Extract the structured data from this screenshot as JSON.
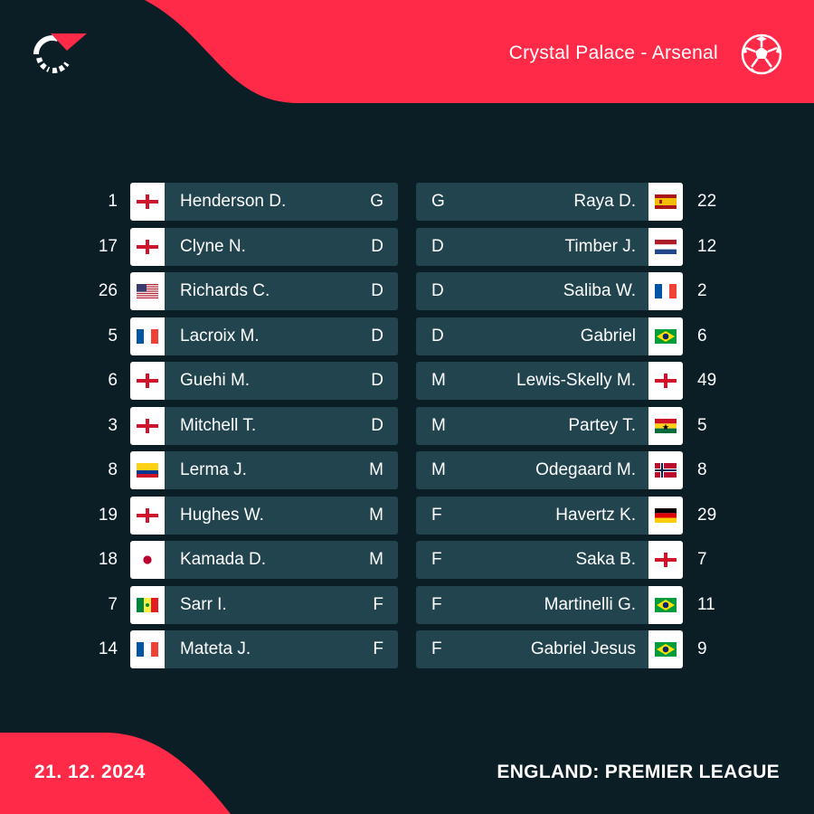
{
  "header": {
    "match_title": "Crystal Palace - Arsenal",
    "accent_color": "#ff2a48",
    "logo_icon": "flashscore-logo",
    "sport_icon": "soccer-ball-icon"
  },
  "home": {
    "team": "Crystal Palace",
    "players": [
      {
        "number": "1",
        "name": "Henderson D.",
        "position": "G",
        "flag": "england"
      },
      {
        "number": "17",
        "name": "Clyne N.",
        "position": "D",
        "flag": "england"
      },
      {
        "number": "26",
        "name": "Richards C.",
        "position": "D",
        "flag": "usa"
      },
      {
        "number": "5",
        "name": "Lacroix M.",
        "position": "D",
        "flag": "france"
      },
      {
        "number": "6",
        "name": "Guehi M.",
        "position": "D",
        "flag": "england"
      },
      {
        "number": "3",
        "name": "Mitchell T.",
        "position": "D",
        "flag": "england"
      },
      {
        "number": "8",
        "name": "Lerma J.",
        "position": "M",
        "flag": "colombia"
      },
      {
        "number": "19",
        "name": "Hughes W.",
        "position": "M",
        "flag": "england"
      },
      {
        "number": "18",
        "name": "Kamada D.",
        "position": "M",
        "flag": "japan"
      },
      {
        "number": "7",
        "name": "Sarr I.",
        "position": "F",
        "flag": "senegal"
      },
      {
        "number": "14",
        "name": "Mateta J.",
        "position": "F",
        "flag": "france"
      }
    ]
  },
  "away": {
    "team": "Arsenal",
    "players": [
      {
        "number": "22",
        "name": "Raya D.",
        "position": "G",
        "flag": "spain"
      },
      {
        "number": "12",
        "name": "Timber J.",
        "position": "D",
        "flag": "netherlands"
      },
      {
        "number": "2",
        "name": "Saliba W.",
        "position": "D",
        "flag": "france"
      },
      {
        "number": "6",
        "name": "Gabriel",
        "position": "D",
        "flag": "brazil"
      },
      {
        "number": "49",
        "name": "Lewis-Skelly M.",
        "position": "M",
        "flag": "england"
      },
      {
        "number": "5",
        "name": "Partey T.",
        "position": "M",
        "flag": "ghana"
      },
      {
        "number": "8",
        "name": "Odegaard M.",
        "position": "M",
        "flag": "norway"
      },
      {
        "number": "29",
        "name": "Havertz K.",
        "position": "F",
        "flag": "germany"
      },
      {
        "number": "7",
        "name": "Saka B.",
        "position": "F",
        "flag": "england"
      },
      {
        "number": "11",
        "name": "Martinelli G.",
        "position": "F",
        "flag": "brazil"
      },
      {
        "number": "9",
        "name": "Gabriel Jesus",
        "position": "F",
        "flag": "brazil"
      }
    ]
  },
  "footer": {
    "date": "21. 12. 2024",
    "competition": "ENGLAND: PREMIER LEAGUE"
  }
}
